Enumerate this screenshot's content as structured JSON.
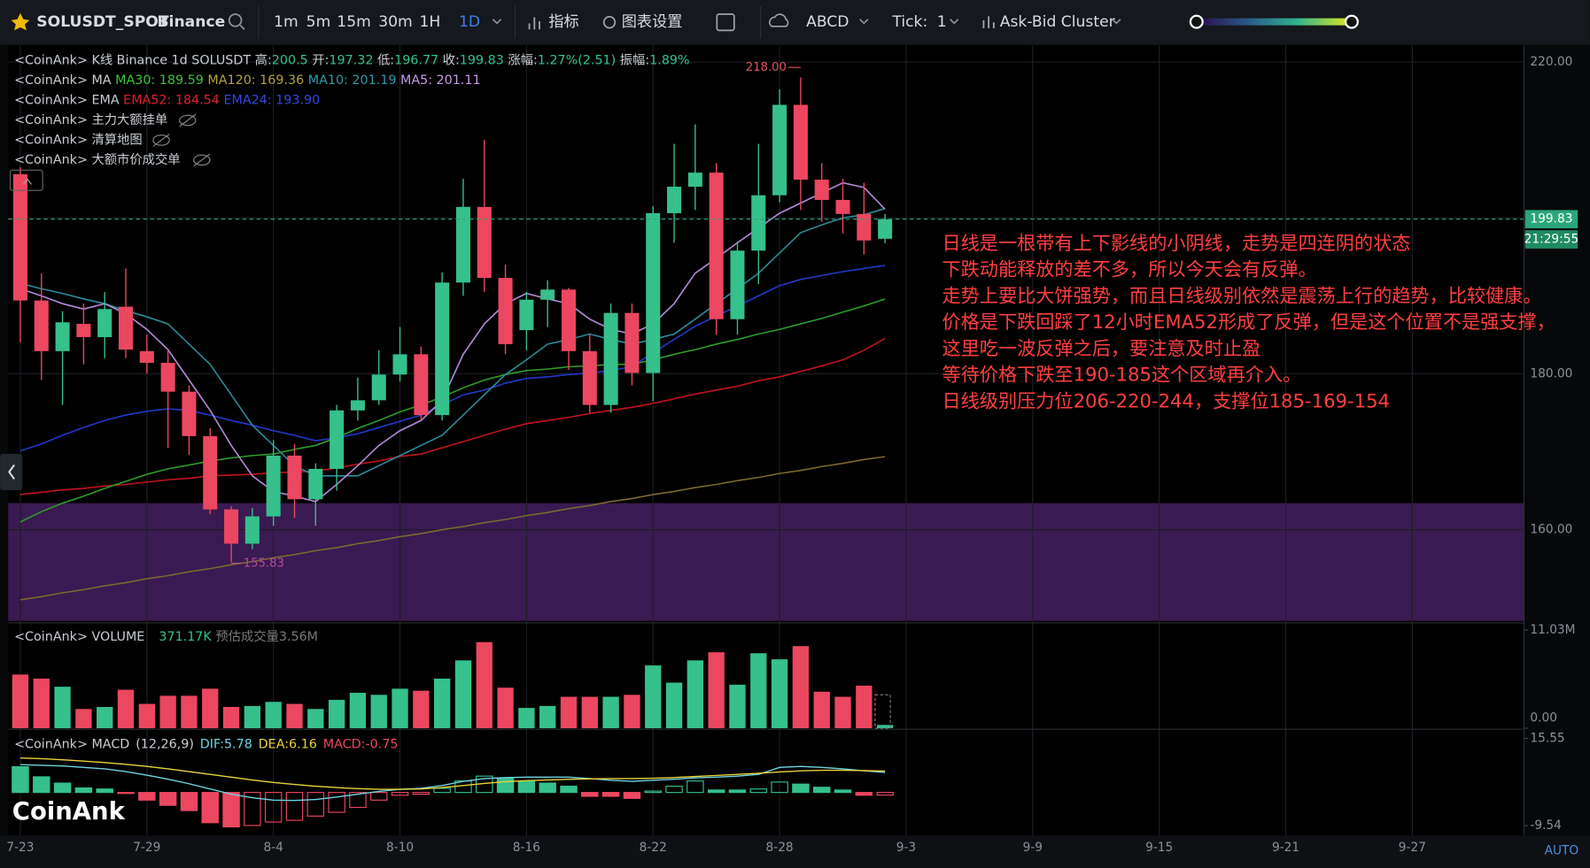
{
  "toolbar": {
    "symbol": "SOLUSDT_SPOT",
    "exchange": "Binance",
    "intervals": [
      "1m",
      "5m",
      "15m",
      "30m",
      "1H",
      "1D"
    ],
    "active_interval": 5,
    "indicators": "指标",
    "settings": "图表设置",
    "drawing": "ABCD",
    "tick_label": "Tick:",
    "tick_value": "1",
    "cluster": "Ask-Bid Cluster"
  },
  "chart_data": {
    "type": "candlestick",
    "x": [
      "7-23",
      "7-24",
      "7-25",
      "7-26",
      "7-27",
      "7-28",
      "7-29",
      "7-30",
      "7-31",
      "8-1",
      "8-2",
      "8-3",
      "8-4",
      "8-5",
      "8-6",
      "8-7",
      "8-8",
      "8-9",
      "8-10",
      "8-11",
      "8-12",
      "8-13",
      "8-14",
      "8-15",
      "8-16",
      "8-17",
      "8-18",
      "8-19",
      "8-20",
      "8-21",
      "8-22",
      "8-23",
      "8-24",
      "8-25",
      "8-26",
      "8-27",
      "8-28",
      "8-29",
      "8-30",
      "8-31",
      "9-1",
      "9-2"
    ],
    "xticks": [
      "7-23",
      "7-29",
      "8-4",
      "8-10",
      "8-16",
      "8-22",
      "8-28",
      "9-3",
      "9-9",
      "9-15",
      "9-21",
      "9-27"
    ],
    "open": [
      205.6,
      189.4,
      182.9,
      186.4,
      184.7,
      188.6,
      182.9,
      181.4,
      177.7,
      172,
      162.6,
      158.2,
      161.7,
      169.5,
      163.9,
      167.8,
      175.3,
      176.6,
      179.9,
      182.5,
      174.7,
      191.7,
      201.4,
      192.3,
      185.6,
      189.5,
      190.8,
      182.9,
      176,
      187.8,
      180.1,
      200.6,
      204,
      205.8,
      187,
      195.8,
      202.9,
      214.5,
      204.9,
      202.3,
      200.5,
      197.32
    ],
    "high": [
      206.5,
      192.9,
      188,
      189,
      190.5,
      193.5,
      185,
      183,
      178.5,
      173,
      163,
      162.8,
      171.5,
      171,
      168.5,
      176,
      179.5,
      183,
      186,
      183.5,
      193,
      205,
      210,
      194,
      190.5,
      192,
      191,
      185,
      189,
      189,
      201.5,
      209.5,
      212,
      207,
      197,
      209.5,
      216.5,
      218,
      207,
      205,
      204.5,
      200.5
    ],
    "low": [
      184,
      179.2,
      176,
      181.2,
      182,
      182,
      180,
      170.5,
      169.6,
      162,
      155.83,
      157.5,
      160.5,
      161.5,
      160.5,
      165,
      174,
      176,
      179,
      174,
      174,
      190,
      190.5,
      182.5,
      183,
      186,
      180.5,
      175,
      175,
      178.5,
      176.5,
      196.8,
      201,
      185,
      185,
      191.5,
      202,
      201,
      199.5,
      198,
      195.3,
      196.77
    ],
    "close": [
      189.4,
      182.9,
      186.6,
      184.7,
      188.3,
      183.1,
      181.4,
      177.7,
      172,
      162.6,
      158.2,
      161.7,
      169.5,
      163.9,
      167.8,
      175.3,
      176.6,
      179.9,
      182.5,
      174.7,
      191.7,
      201.4,
      192.3,
      183.8,
      189.5,
      190.8,
      182.9,
      176,
      187.8,
      180.1,
      200.6,
      204,
      205.8,
      187,
      195.8,
      202.9,
      214.5,
      204.9,
      202.3,
      200.5,
      197.1,
      199.83
    ],
    "up_color": "#35c08c",
    "down_color": "#ec4760",
    "ylim": [
      148.3,
      222.1
    ],
    "yticks": [
      {
        "value": 160,
        "label": "160.00"
      },
      {
        "value": 180,
        "label": "180.00"
      },
      {
        "value": 200,
        "label": "200.00"
      },
      {
        "value": 220,
        "label": "220.00"
      }
    ],
    "high_label": "218.00",
    "countdown": "21:29:55",
    "zone_top": 163.4,
    "legend": [
      [
        {
          "text": "<CoinAnk> K线  Binance 1d SOLUSDT 高:"
        },
        {
          "text": "200.5",
          "color": "#35c08c"
        },
        {
          "text": " 开:"
        },
        {
          "text": "197.32",
          "color": "#35c08c"
        },
        {
          "text": " 低:"
        },
        {
          "text": "196.77",
          "color": "#35c08c"
        },
        {
          "text": " 收:"
        },
        {
          "text": "199.83",
          "color": "#35c08c"
        },
        {
          "text": " 涨幅:"
        },
        {
          "text": "1.27%(2.51)",
          "color": "#35c08c"
        },
        {
          "text": " 振幅:"
        },
        {
          "text": "1.89%",
          "color": "#35c08c"
        }
      ],
      [
        {
          "text": "<CoinAnk> MA   "
        },
        {
          "text": "MA30: 189.59",
          "color": "#3fc23a"
        },
        {
          "text": " MA120: 169.36",
          "color": "#b5a13e"
        },
        {
          "text": " MA10: 201.19",
          "color": "#2f9aa8"
        },
        {
          "text": " MA5: 201.11",
          "color": "#c79be8"
        }
      ],
      [
        {
          "text": "<CoinAnk> EMA   "
        },
        {
          "text": "EMA52: 184.54",
          "color": "#e0202a"
        },
        {
          "text": " EMA24: 193.90",
          "color": "#3248e0"
        }
      ],
      [
        {
          "text": "<CoinAnk> 主力大额挂单"
        }
      ],
      [
        {
          "text": "<CoinAnk> 清算地图"
        }
      ],
      [
        {
          "text": "<CoinAnk> 大额市价成交单"
        }
      ]
    ],
    "lines": [
      {
        "color": "#7a6a2e",
        "values": [
          151.0,
          151.4,
          151.9,
          152.3,
          152.8,
          153.2,
          153.7,
          154.1,
          154.6,
          155.0,
          155.5,
          155.9,
          156.4,
          156.8,
          157.3,
          157.7,
          158.2,
          158.6,
          159.1,
          159.5,
          160.0,
          160.4,
          160.9,
          161.3,
          161.8,
          162.2,
          162.7,
          163.1,
          163.6,
          164.0,
          164.5,
          164.9,
          165.4,
          165.8,
          166.3,
          166.7,
          167.2,
          167.6,
          168.1,
          168.5,
          169.0,
          169.36
        ]
      },
      {
        "color": "#c0141e",
        "values": [
          164.5,
          164.8,
          165.1,
          165.3,
          165.6,
          165.8,
          166.1,
          166.4,
          166.6,
          166.9,
          167.0,
          167.1,
          167.3,
          167.4,
          167.5,
          167.9,
          168.4,
          168.8,
          169.4,
          169.7,
          170.5,
          171.3,
          172.1,
          172.9,
          173.6,
          174.0,
          174.4,
          174.9,
          175.3,
          175.7,
          176.2,
          176.8,
          177.4,
          177.9,
          178.4,
          179.1,
          179.6,
          180.3,
          181.0,
          181.8,
          183.0,
          184.54
        ]
      },
      {
        "color": "#2e9c2a",
        "values": [
          161.0,
          162.3,
          163.4,
          164.3,
          165.3,
          166.2,
          167.1,
          167.8,
          168.3,
          168.8,
          169.2,
          169.5,
          169.7,
          170.3,
          170.8,
          171.8,
          173.0,
          174.0,
          175.1,
          176.0,
          177.0,
          178.2,
          179.2,
          179.9,
          180.4,
          180.6,
          180.9,
          181.0,
          181.2,
          181.2,
          181.8,
          182.5,
          183.1,
          183.8,
          184.4,
          185.1,
          185.7,
          186.4,
          187.1,
          187.9,
          188.7,
          189.59
        ]
      },
      {
        "color": "#2238c8",
        "values": [
          170.1,
          171.0,
          172.1,
          173.1,
          174.0,
          174.7,
          175.2,
          175.5,
          175.3,
          174.7,
          174.0,
          173.4,
          172.7,
          172.1,
          171.4,
          171.8,
          172.3,
          173.1,
          173.9,
          174.7,
          176.0,
          177.3,
          177.9,
          178.8,
          179.4,
          179.6,
          179.9,
          180.1,
          180.4,
          180.9,
          182.7,
          184.4,
          186.1,
          187.4,
          188.7,
          190.0,
          191.3,
          192.1,
          192.6,
          193.1,
          193.5,
          193.9
        ]
      },
      {
        "color": "#2a8c98",
        "values": [
          191.6,
          190.9,
          190.3,
          189.6,
          189.0,
          188.1,
          187.3,
          186.4,
          183.8,
          181.2,
          177.3,
          173.4,
          170.8,
          168.2,
          166.9,
          166.9,
          166.9,
          168.2,
          169.5,
          170.8,
          172.1,
          174.7,
          177.3,
          179.9,
          181.8,
          183.8,
          184.4,
          185.1,
          184.4,
          183.8,
          184.4,
          185.1,
          187.0,
          189.0,
          190.9,
          192.9,
          195.5,
          198.1,
          199.1,
          200.0,
          200.4,
          201.19
        ]
      },
      {
        "color": "#b48ad8",
        "values": [
          190.9,
          190.0,
          189.0,
          188.3,
          189.0,
          187.7,
          185.7,
          183.1,
          179.2,
          175.3,
          170.8,
          166.9,
          164.9,
          164.3,
          163.6,
          165.8,
          168.2,
          170.8,
          172.7,
          174.0,
          176.6,
          182.5,
          186.4,
          189.0,
          190.3,
          189.6,
          189.0,
          187.0,
          185.7,
          185.1,
          186.4,
          189.0,
          192.9,
          194.8,
          196.8,
          198.7,
          200.6,
          201.9,
          203.2,
          204.5,
          203.9,
          201.11
        ]
      }
    ],
    "volume": {
      "title": "<CoinAnk> VOLUME",
      "current": "371.17K",
      "estimate": "预估成交量3.56M",
      "ylim": [
        0,
        11.6
      ],
      "yticks": [
        {
          "value": 0,
          "label": "0.00"
        },
        {
          "value": 11.03,
          "label": "11.03M"
        }
      ],
      "values": [
        6.03,
        5.57,
        4.66,
        2.16,
        2.39,
        4.32,
        2.73,
        3.64,
        3.64,
        4.44,
        2.39,
        2.5,
        2.96,
        2.73,
        2.16,
        3.19,
        3.98,
        3.75,
        4.44,
        4.21,
        5.57,
        7.62,
        9.67,
        4.55,
        2.28,
        2.5,
        3.53,
        3.53,
        3.53,
        3.75,
        7.05,
        5.12,
        7.62,
        8.53,
        4.89,
        8.42,
        7.74,
        9.22,
        4.1,
        3.53,
        4.78,
        0.37117
      ]
    },
    "macd": {
      "title": "<CoinAnk> MACD",
      "params": "(12,26,9)",
      "dif_label": "DIF:5.78",
      "dea_label": "DEA:6.16",
      "macd_label": "MACD:-0.75",
      "ylim": [
        -12.4,
        17.6
      ],
      "yticks": [
        15.55,
        -9.54
      ],
      "dif": {
        "color": "#6fd3e0",
        "values": [
          8.0,
          7.8,
          7.6,
          7.2,
          6.8,
          6.0,
          5.0,
          3.8,
          2.5,
          1.0,
          -0.5,
          -1.5,
          -2.2,
          -2.3,
          -2.0,
          -1.3,
          -0.5,
          0.3,
          0.9,
          1.2,
          2.0,
          3.2,
          4.0,
          4.3,
          4.4,
          4.4,
          4.4,
          4.0,
          3.5,
          3.2,
          3.5,
          3.8,
          4.2,
          4.4,
          4.7,
          5.2,
          7.2,
          7.5,
          7.2,
          6.8,
          6.2,
          5.78
        ]
      },
      "dea": {
        "color": "#e8d33a",
        "values": [
          9.9,
          9.7,
          9.4,
          9.0,
          8.6,
          8.1,
          7.5,
          6.8,
          6.0,
          5.2,
          4.4,
          3.6,
          2.9,
          2.3,
          1.8,
          1.4,
          1.1,
          0.9,
          0.9,
          1.0,
          1.4,
          2.0,
          2.6,
          3.1,
          3.4,
          3.6,
          3.8,
          3.9,
          4.0,
          4.0,
          4.1,
          4.3,
          4.6,
          4.9,
          5.2,
          5.5,
          5.9,
          6.2,
          6.4,
          6.4,
          6.3,
          6.16
        ]
      },
      "hist": [
        7.4,
        4.5,
        2.7,
        1.3,
        1.0,
        -0.2,
        -2.2,
        -3.7,
        -5.2,
        -8.7,
        -9.9,
        -9.5,
        -8.5,
        -8.0,
        -6.8,
        -5.7,
        -4.3,
        -2.2,
        -0.8,
        -0.5,
        1.2,
        3.3,
        4.7,
        4.1,
        3.3,
        2.7,
        1.8,
        -1.1,
        -1.1,
        -1.7,
        0.4,
        1.8,
        3.3,
        0.7,
        0.7,
        1.0,
        3.0,
        2.4,
        1.5,
        0.7,
        -0.8,
        -0.75
      ]
    }
  },
  "annotation": [
    "日线是一根带有上下影线的小阴线，走势是四连阴的状态",
    "下跌动能释放的差不多，所以今天会有反弹。",
    "走势上要比大饼强势，而且日线级别依然是震荡上行的趋势，比较健康。",
    "价格是下跌回踩了12小时EMA52形成了反弹，但是这个位置不是强支撑，",
    "这里吃一波反弹之后，要注意及时止盈",
    "等待价格下跌至190-185这个区域再介入。",
    "日线级别压力位206-220-244，支撑位185-169-154"
  ],
  "watermark": "CoinAnk",
  "auto": "AUTO"
}
